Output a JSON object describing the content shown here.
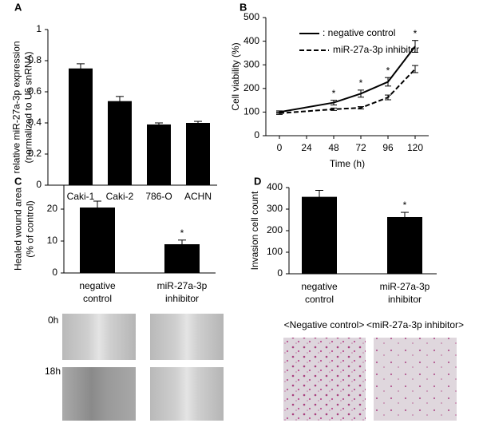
{
  "chart_data": [
    {
      "type": "bar",
      "panel_label": "A",
      "ylabel": [
        "relative miR-27a-3p expression",
        "(normalized to U6 snRNA)"
      ],
      "categories": [
        "Caki-1",
        "Caki-2",
        "786-O",
        "ACHN"
      ],
      "values": [
        0.75,
        0.54,
        0.39,
        0.4
      ],
      "errors": [
        0.03,
        0.03,
        0.01,
        0.01
      ],
      "color": "#000000",
      "ylim": [
        0,
        1
      ],
      "yticks": [
        0,
        0.2,
        0.4,
        0.6,
        0.8,
        1
      ]
    },
    {
      "type": "line",
      "panel_label": "B",
      "ylabel": [
        "Cell viability (%)"
      ],
      "xlabel": "Time (h)",
      "x": [
        0,
        48,
        72,
        96,
        120
      ],
      "xlim": [
        -12,
        132
      ],
      "xticks": [
        0,
        24,
        48,
        72,
        96,
        120
      ],
      "ylim": [
        0,
        500
      ],
      "yticks": [
        0,
        100,
        200,
        300,
        400,
        500
      ],
      "legend": "top-left",
      "series": [
        {
          "name": ": negative control",
          "color": "#000000",
          "dash": "solid",
          "values": [
            100,
            140,
            178,
            228,
            378
          ],
          "errors": [
            5,
            10,
            15,
            18,
            25
          ]
        },
        {
          "name": "miR-27a-3p inhibitor",
          "color": "#000000",
          "dash": "dashed",
          "values": [
            95,
            112,
            118,
            162,
            282
          ],
          "errors": [
            5,
            5,
            5,
            10,
            15
          ]
        }
      ],
      "annotations": [
        {
          "x": 48,
          "text": "*"
        },
        {
          "x": 72,
          "text": "*"
        },
        {
          "x": 96,
          "text": "*"
        },
        {
          "x": 120,
          "text": "*"
        }
      ]
    },
    {
      "type": "bar",
      "panel_label": "C",
      "ylabel": [
        "Healed wound area",
        "(% of control)"
      ],
      "categories": [
        "negative control",
        "miR-27a-3p inhibitor"
      ],
      "values": [
        20.5,
        9
      ],
      "errors": [
        2,
        1.3
      ],
      "color": "#000000",
      "ylim": [
        0,
        27.5
      ],
      "yticks": [
        0,
        10,
        20
      ],
      "annotations": [
        {
          "category": "miR-27a-3p inhibitor",
          "text": "*"
        }
      ]
    },
    {
      "type": "bar",
      "panel_label": "D",
      "ylabel": [
        "Invasion cell count"
      ],
      "categories": [
        "negative control",
        "miR-27a-3p inhibitor"
      ],
      "values": [
        357,
        263
      ],
      "errors": [
        30,
        22
      ],
      "color": "#000000",
      "ylim": [
        0,
        400
      ],
      "yticks": [
        0,
        100,
        200,
        300,
        400
      ],
      "annotations": [
        {
          "category": "miR-27a-3p inhibitor",
          "text": "*"
        }
      ]
    }
  ],
  "images": {
    "wound_rows": [
      "0h",
      "18h"
    ],
    "invasion_captions": [
      "<Negative control>",
      "<miR-27a-3p inhibitor>"
    ]
  }
}
